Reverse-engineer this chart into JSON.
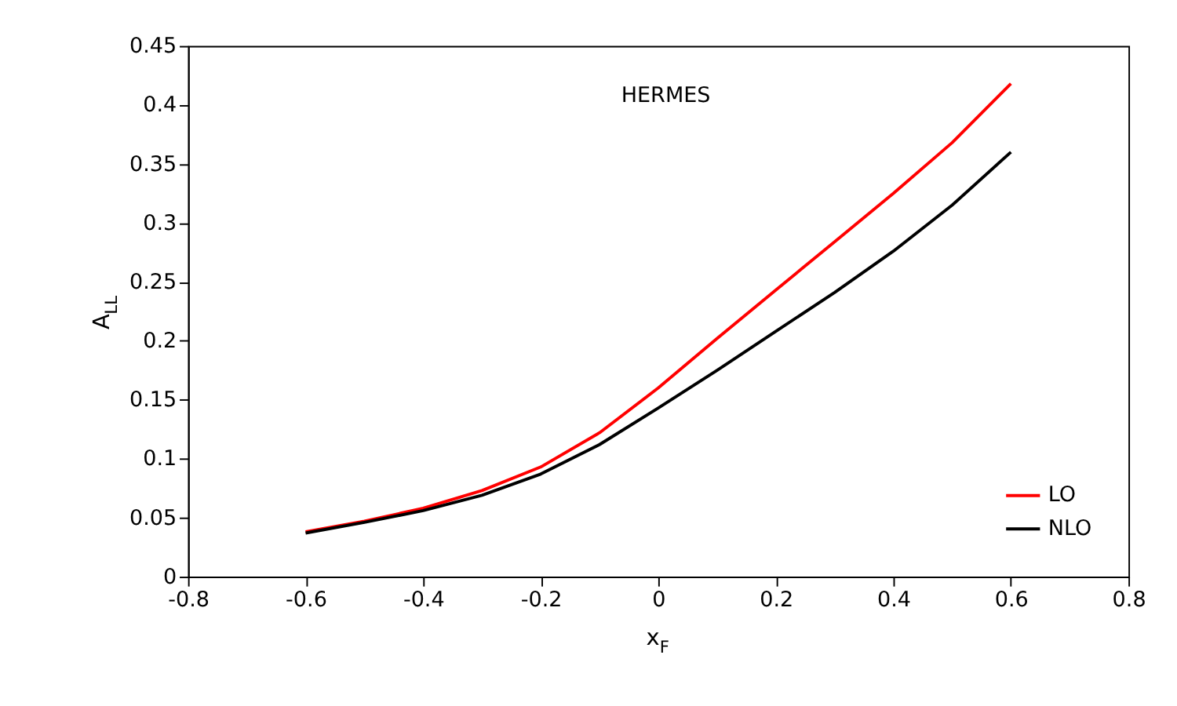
{
  "chart_data": {
    "type": "line",
    "xlabel": "x$_{F}$",
    "ylabel": "A$_{LL}$",
    "annotations": [
      "HERMES"
    ],
    "x": [
      -0.6,
      -0.5,
      -0.4,
      -0.3,
      -0.2,
      -0.1,
      0,
      0.1,
      0.2,
      0.3,
      0.4,
      0.5,
      0.6
    ],
    "series": [
      {
        "name": "LO",
        "color": "#ff0000",
        "values": [
          0.038,
          0.047,
          0.058,
          0.073,
          0.093,
          0.122,
          0.16,
          0.202,
          0.243,
          0.284,
          0.325,
          0.368,
          0.418
        ]
      },
      {
        "name": "NLO",
        "color": "#000000",
        "values": [
          0.037,
          0.046,
          0.056,
          0.069,
          0.087,
          0.112,
          0.143,
          0.175,
          0.208,
          0.241,
          0.276,
          0.315,
          0.36
        ]
      }
    ],
    "xlim": [
      -0.8,
      0.8
    ],
    "xticks": [
      -0.8,
      -0.6,
      -0.4,
      -0.2,
      0,
      0.2,
      0.4,
      0.6,
      0.8
    ],
    "ylim": [
      0,
      0.45
    ],
    "yticks": [
      0,
      0.05,
      0.1,
      0.15,
      0.2,
      0.25,
      0.3,
      0.35,
      0.4,
      0.45
    ],
    "grid": false,
    "legend": "bottom right",
    "marker": "none",
    "line_style": "solid"
  }
}
